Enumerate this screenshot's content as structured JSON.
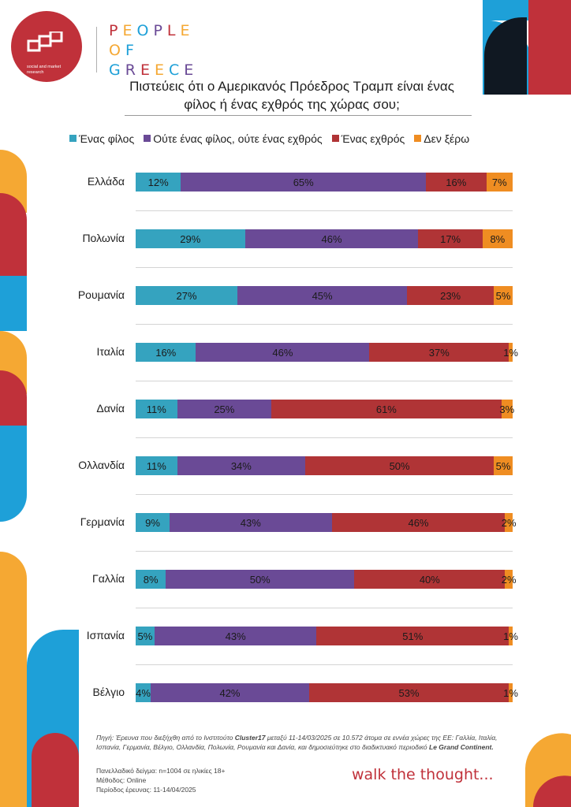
{
  "brand": {
    "logo_sub": "social and market research",
    "line1": "PEOPLE",
    "line2": "OF",
    "line3": "GREECE"
  },
  "title": {
    "line1": "Πιστεύεις ότι ο Αμερικανός Πρόεδρος Τραμπ είναι ένας",
    "line2": "φίλος ή ένας εχθρός της χώρας σου;"
  },
  "colors": {
    "friend": "#35a3bf",
    "neither": "#6a4a96",
    "enemy": "#b03436",
    "dontknow": "#ef8d22",
    "accent_red": "#c0313a",
    "accent_blue": "#1ea0d8",
    "accent_orange": "#f5a833"
  },
  "chart_data": {
    "type": "bar",
    "orientation": "horizontal",
    "stacked": true,
    "title": "Πιστεύεις ότι ο Αμερικανός Πρόεδρος Τραμπ είναι ένας φίλος ή ένας εχθρός της χώρας σου;",
    "legend_position": "top",
    "value_suffix": "%",
    "categories": [
      "Ελλάδα",
      "Πολωνία",
      "Ρουμανία",
      "Ιταλία",
      "Δανία",
      "Ολλανδία",
      "Γερμανία",
      "Γαλλία",
      "Ισπανία",
      "Βέλγιο"
    ],
    "series": [
      {
        "name": "Ένας φίλος",
        "values": [
          12,
          29,
          27,
          16,
          11,
          11,
          9,
          8,
          5,
          4
        ]
      },
      {
        "name": "Ούτε ένας φίλος, ούτε ένας εχθρός",
        "values": [
          65,
          46,
          45,
          46,
          25,
          34,
          43,
          50,
          43,
          42
        ]
      },
      {
        "name": "Ένας εχθρός",
        "values": [
          16,
          17,
          23,
          37,
          61,
          50,
          46,
          40,
          51,
          53
        ]
      },
      {
        "name": "Δεν ξέρω",
        "values": [
          7,
          8,
          5,
          1,
          3,
          5,
          2,
          2,
          1,
          1
        ]
      }
    ]
  },
  "footer": {
    "source_a": "Πηγή: Έρευνα που διεξήχθη από το Ινστιτούτο ",
    "source_b": "Cluster17",
    "source_c": " μεταξύ 11-14/03/2025 σε 10.572 άτομα σε εννέα χώρες της ΕΕ: Γαλλία, Ιταλία, Ισπανία, Γερμανία, Βέλγιο, Ολλανδία, Πολωνία, Ρουμανία και Δανία, και δημοσιεύτηκε στο διαδικτυακό περιοδικό ",
    "source_d": "Le Grand Continent.",
    "sample": "Πανελλαδικό δείγμα: n=1004 σε ηλικίες 18+",
    "method": "Μέθοδος: Online",
    "period": "Περίοδος έρευνας: 11-14/04/2025",
    "tagline": "walk the thought..."
  }
}
